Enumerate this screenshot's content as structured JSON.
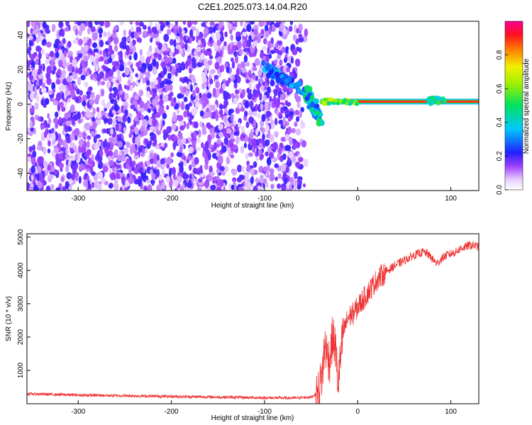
{
  "title": "C2E1.2025.073.14.04.R20",
  "chart_data": [
    {
      "type": "heatmap",
      "xlabel": "Height of straight line (km)",
      "ylabel": "Frequency (Hz)",
      "xlim": [
        -355,
        130
      ],
      "ylim": [
        -50,
        48
      ],
      "x_ticks": [
        -300,
        -200,
        -100,
        0,
        100
      ],
      "y_ticks": [
        -40,
        -20,
        0,
        20,
        40
      ],
      "grid": false,
      "colorbar": {
        "label": "Normalized spectral amplitude",
        "range": [
          0.0,
          1.0
        ],
        "ticks": [
          0.0,
          0.2,
          0.4,
          0.6,
          0.8
        ],
        "tick_labels": [
          "0.0",
          "0.2",
          "0.4",
          "0.6",
          "0.8"
        ]
      },
      "regions": [
        {
          "name": "noise",
          "x_range": [
            -355,
            -70
          ],
          "y_range": [
            -50,
            48
          ],
          "amplitude": 0.15
        },
        {
          "name": "descending-trace",
          "from": [
            -105,
            22
          ],
          "to": [
            -55,
            8
          ],
          "amplitude": 0.35
        },
        {
          "name": "scattered-trace",
          "from": [
            -55,
            8
          ],
          "to": [
            -40,
            -10
          ],
          "amplitude": 0.45
        },
        {
          "name": "carrier",
          "x_range": [
            -40,
            130
          ],
          "frequency": 1.5,
          "amplitude": 0.9
        },
        {
          "name": "carrier-widening",
          "x_range": [
            75,
            95
          ],
          "frequency": 2,
          "amplitude": 0.5
        }
      ]
    },
    {
      "type": "line",
      "xlabel": "Height of straight line (km)",
      "ylabel": "SNR (10 * v/v)",
      "xlim": [
        -355,
        130
      ],
      "ylim": [
        0,
        5100
      ],
      "x_ticks": [
        -300,
        -200,
        -100,
        0,
        100
      ],
      "y_ticks": [
        1000,
        2000,
        3000,
        4000,
        5000
      ],
      "color": "#ee3333",
      "grid": false,
      "series": [
        {
          "x": [
            -355,
            -300,
            -250,
            -200,
            -150,
            -100,
            -70,
            -50,
            -42,
            -38,
            -35,
            -33,
            -30,
            -27,
            -24,
            -21,
            -19,
            -15,
            -10,
            -5,
            0,
            5,
            10,
            15,
            20,
            30,
            40,
            50,
            60,
            70,
            75,
            80,
            85,
            90,
            95,
            100,
            105,
            110,
            115,
            120,
            125,
            130
          ],
          "y": [
            300,
            260,
            240,
            220,
            200,
            180,
            170,
            200,
            350,
            900,
            1800,
            1500,
            1300,
            2000,
            1700,
            600,
            1200,
            2200,
            2600,
            2700,
            2900,
            3100,
            3300,
            3500,
            3700,
            3950,
            4150,
            4300,
            4450,
            4550,
            4500,
            4350,
            4200,
            4350,
            4450,
            4500,
            4550,
            4650,
            4700,
            4750,
            4750,
            4700
          ]
        }
      ]
    }
  ]
}
